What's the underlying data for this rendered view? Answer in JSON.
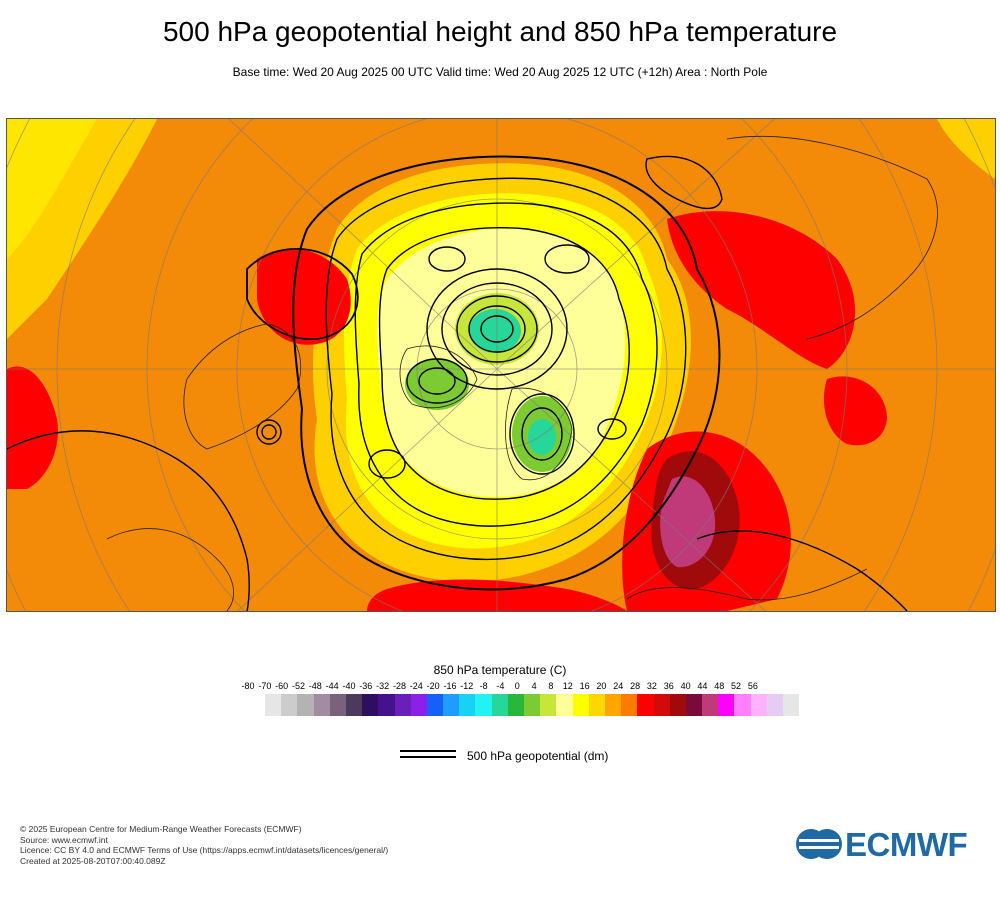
{
  "header": {
    "title": "500 hPa geopotential height and 850 hPa temperature",
    "subtitle": "Base time: Wed 20 Aug 2025 00 UTC Valid time: Wed 20 Aug 2025 12 UTC (+12h) Area : North Pole"
  },
  "map": {
    "projection": "polar stereographic",
    "area": "North Pole",
    "fill_variable": "850 hPa temperature",
    "contour_variable": "500 hPa geopotential"
  },
  "legend": {
    "title": "850 hPa temperature (C)",
    "ticks": [
      "-80",
      "-70",
      "-60",
      "-52",
      "-48",
      "-44",
      "-40",
      "-36",
      "-32",
      "-28",
      "-24",
      "-20",
      "-16",
      "-12",
      "-8",
      "-4",
      "0",
      "4",
      "8",
      "12",
      "16",
      "20",
      "24",
      "28",
      "32",
      "36",
      "40",
      "44",
      "48",
      "52",
      "56"
    ],
    "colors": [
      "#e6e6e6",
      "#cccccc",
      "#b3b3b3",
      "#a28ca2",
      "#7a627a",
      "#4b3a5a",
      "#2e0f5f",
      "#45128c",
      "#6a1fb8",
      "#8c1fe8",
      "#1560f5",
      "#1f9cff",
      "#18d2f5",
      "#22f2f2",
      "#27d79a",
      "#2ab63d",
      "#7ccb32",
      "#c8e63a",
      "#ffff99",
      "#ffff00",
      "#ffd700",
      "#ffa500",
      "#ff7a00",
      "#ff0000",
      "#d20a0a",
      "#a00a0a",
      "#7a0a3a",
      "#c03a7a",
      "#ff00ff",
      "#ff80ff",
      "#ffb3ff",
      "#e6ccf2",
      "#e6e6e6"
    ]
  },
  "contour_legend": {
    "label": "500 hPa geopotential (dm)"
  },
  "footer": {
    "lines": [
      "© 2025 European Centre for Medium-Range Weather Forecasts (ECMWF)",
      "Source: www.ecmwf.int",
      "Licence: CC BY 4.0 and ECMWF Terms of Use (https://apps.ecmwf.int/datasets/licences/general/)",
      "Created at 2025-08-20T07:00:40.089Z"
    ]
  },
  "logo": {
    "text": "ECMWF"
  }
}
